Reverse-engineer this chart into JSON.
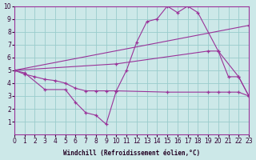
{
  "background_color": "#cce8e8",
  "grid_color": "#99cccc",
  "line_color": "#993399",
  "marker": "+",
  "xlabel": "Windchill (Refroidissement éolien,°C)",
  "xlim": [
    0,
    23
  ],
  "ylim": [
    0,
    10
  ],
  "xticks": [
    0,
    1,
    2,
    3,
    4,
    5,
    6,
    7,
    8,
    9,
    10,
    11,
    12,
    13,
    14,
    15,
    16,
    17,
    18,
    19,
    20,
    21,
    22,
    23
  ],
  "yticks": [
    1,
    2,
    3,
    4,
    5,
    6,
    7,
    8,
    9,
    10
  ],
  "lines": [
    {
      "x": [
        0,
        1,
        3,
        5,
        6,
        7,
        8,
        9,
        10,
        11,
        12,
        13,
        14,
        15,
        16,
        17,
        18,
        20,
        22,
        23
      ],
      "y": [
        5,
        4.8,
        3.5,
        3.5,
        2.5,
        1.7,
        1.5,
        0.8,
        3.4,
        5.0,
        7.2,
        8.8,
        9.0,
        10.0,
        9.5,
        10.0,
        9.5,
        6.5,
        4.5,
        3.0
      ]
    },
    {
      "x": [
        0,
        23
      ],
      "y": [
        5.0,
        8.5
      ]
    },
    {
      "x": [
        0,
        1,
        2,
        3,
        4,
        5,
        6,
        7,
        8,
        9,
        10,
        15,
        19,
        20,
        21,
        22,
        23
      ],
      "y": [
        5.0,
        4.7,
        4.5,
        4.3,
        4.2,
        4.0,
        3.6,
        3.4,
        3.4,
        3.4,
        3.4,
        3.3,
        3.3,
        3.3,
        3.3,
        3.3,
        3.0
      ]
    },
    {
      "x": [
        0,
        10,
        19,
        20,
        21,
        22,
        23
      ],
      "y": [
        5.0,
        5.5,
        6.5,
        6.5,
        4.5,
        4.5,
        3.0
      ]
    }
  ]
}
